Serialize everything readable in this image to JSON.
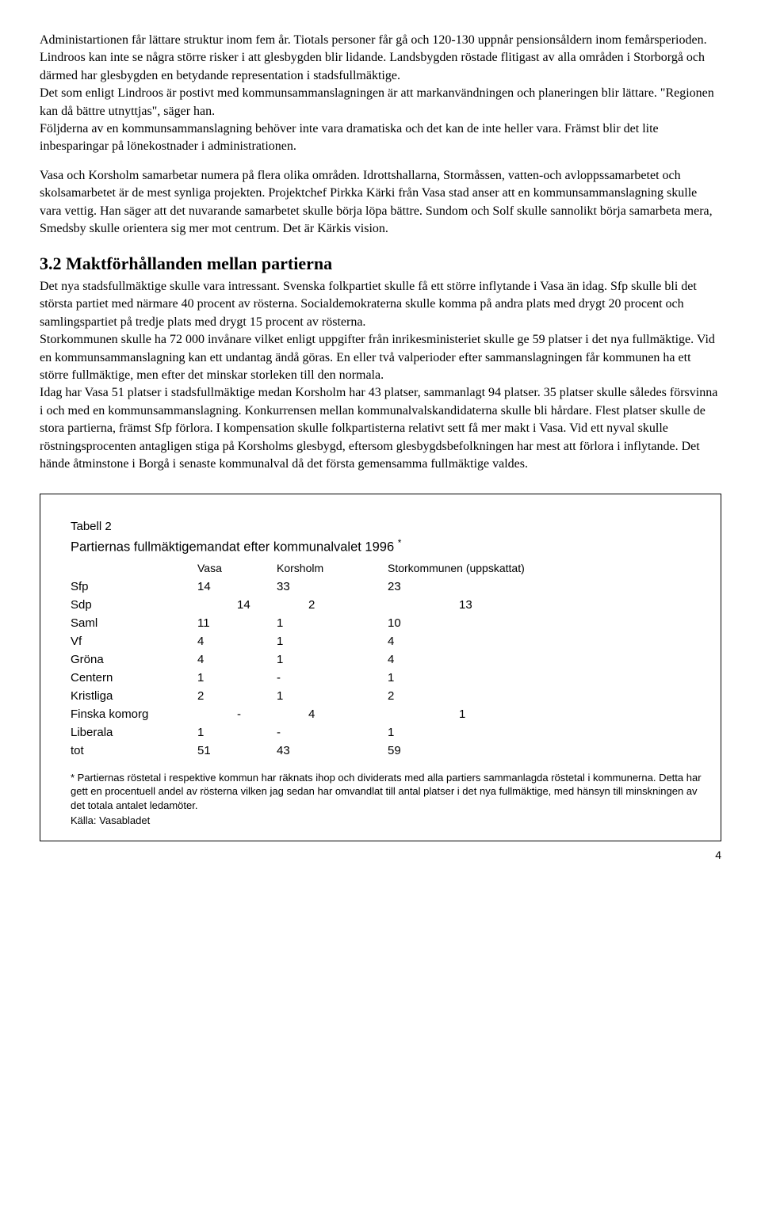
{
  "paragraphs": {
    "p1": "Administartionen får lättare struktur inom fem år. Tiotals personer får gå och 120-130 uppnår pensionsåldern inom femårsperioden.",
    "p2": "  Lindroos kan inte se några större risker i att glesbygden blir lidande. Landsbygden röstade flitigast av alla områden i Storborgå och därmed har glesbygden en betydande representation i stadsfullmäktige.",
    "p3": "  Det som enligt Lindroos är postivt med kommunsammanslagningen är att markanvändningen och planeringen blir lättare. \"Regionen kan då bättre utnyttjas\", säger han.",
    "p4": "  Följderna av en kommunsammanslagning behöver inte vara dramatiska och det kan de inte heller vara. Främst blir det lite inbesparingar på lönekostnader i administrationen.",
    "p5": "   Vasa och Korsholm samarbetar numera på flera olika områden. Idrottshallarna, Stormåssen, vatten-och avloppssamarbetet och skolsamarbetet är de mest synliga projekten. Projektchef Pirkka Kärki från Vasa stad anser att en kommunsammanslagning skulle vara vettig. Han säger att det nuvarande samarbetet skulle börja löpa bättre. Sundom och Solf  skulle sannolikt börja samarbeta mera, Smedsby skulle orientera sig mer mot centrum. Det är Kärkis vision."
  },
  "section": {
    "heading": "3.2 Maktförhållanden mellan partierna",
    "body1": "Det nya stadsfullmäktige skulle vara intressant. Svenska folkpartiet skulle få ett större inflytande i Vasa än idag. Sfp skulle bli det största partiet med närmare 40 procent av rösterna. Socialdemokraterna skulle komma på andra plats med drygt 20 procent och samlingspartiet på tredje plats med drygt 15 procent av rösterna.",
    "body2": "  Storkommunen skulle ha 72 000 invånare vilket enligt uppgifter från inrikesministeriet skulle ge 59 platser i det nya fullmäktige. Vid en kommunsammanslagning kan ett undantag ändå göras. En eller två valperioder efter sammanslagningen får  kommunen ha ett större fullmäktige, men efter det minskar storleken till den normala.",
    "body3": "   Idag har Vasa 51 platser i stadsfullmäktige medan Korsholm har 43 platser, sammanlagt 94 platser. 35 platser skulle således försvinna i och med en kommunsammanslagning. Konkurrensen mellan kommunalvalskandidaterna skulle bli hårdare. Flest platser skulle de stora partierna, främst Sfp förlora. I kompensation skulle folkpartisterna relativt sett få mer makt i Vasa. Vid ett nyval skulle röstningsprocenten antagligen stiga på Korsholms glesbygd, eftersom glesbygdsbefolkningen har mest att förlora i inflytande. Det hände åtminstone i Borgå i senaste kommunalval då det första gemensamma fullmäktige valdes."
  },
  "table": {
    "label": "Tabell 2",
    "title": "Partiernas fullmäktigemandat efter kommunalvalet 1996",
    "asterisk": "*",
    "columns": [
      "",
      "Vasa",
      "Korsholm",
      "Storkommunen (uppskattat)"
    ],
    "rows": [
      {
        "name": "Sfp",
        "vasa": "14",
        "kors": "33",
        "stor": "23",
        "bold": true
      },
      {
        "name": "Sdp",
        "vasa": "14",
        "kors": "2",
        "stor": "13",
        "bold": false,
        "offset": true
      },
      {
        "name": "Saml",
        "vasa": "11",
        "kors": "1",
        "stor": "10",
        "bold": true
      },
      {
        "name": "Vf",
        "vasa": "4",
        "kors": "1",
        "stor": "4",
        "bold": false
      },
      {
        "name": "Gröna",
        "vasa": "4",
        "kors": "1",
        "stor": "4",
        "bold": true
      },
      {
        "name": "Centern",
        "vasa": "1",
        "kors": "-",
        "stor": "1",
        "bold": false
      },
      {
        "name": "Kristliga",
        "vasa": "2",
        "kors": "1",
        "stor": "2",
        "bold": true
      },
      {
        "name": "Finska komorg",
        "vasa": "-",
        "kors": "4",
        "stor": "1",
        "bold": false,
        "offset": true
      },
      {
        "name": "Liberala",
        "vasa": "1",
        "kors": "-",
        "stor": "1",
        "bold": true
      },
      {
        "name": "tot",
        "vasa": "51",
        "kors": "43",
        "stor": "59",
        "bold": false
      }
    ],
    "footnote_marker": "*",
    "footnote": " Partiernas röstetal i respektive kommun har räknats ihop och dividerats med alla partiers sammanlagda röstetal i kommunerna. Detta har gett en procentuell andel av rösterna vilken jag sedan har omvandlat till antal platser i det nya fullmäktige, med hänsyn till minskningen av det totala antalet ledamöter.",
    "source": "Källa: Vasabladet"
  },
  "page_number": "4"
}
